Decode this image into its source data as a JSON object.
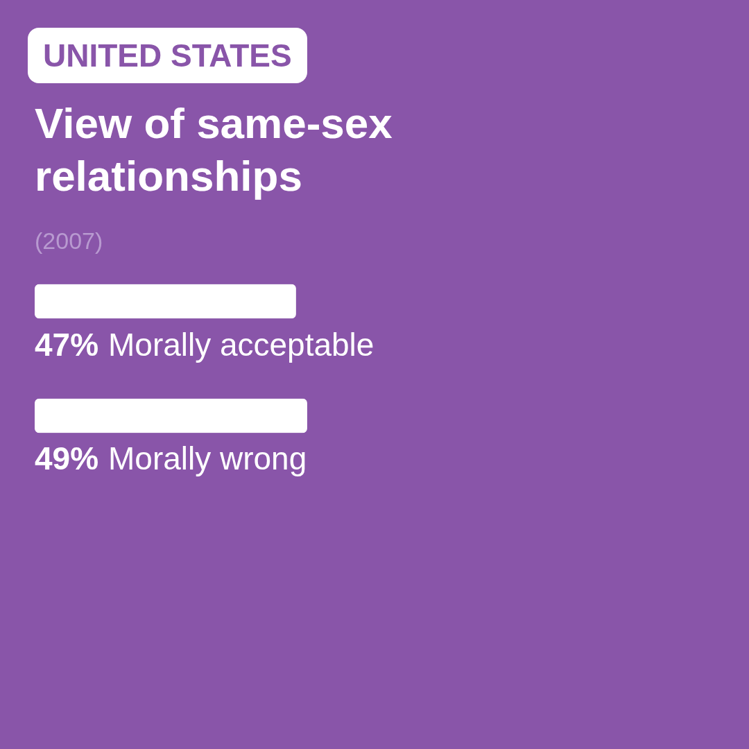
{
  "chart_data": {
    "type": "bar",
    "orientation": "horizontal",
    "title": "View of same-sex relationships",
    "annotations": [
      "UNITED STATES",
      "(2007)"
    ],
    "categories": [
      "Morally acceptable",
      "Morally wrong"
    ],
    "values": [
      47,
      49
    ],
    "value_labels": [
      "47%",
      "49%"
    ],
    "color": "#ffffff"
  }
}
